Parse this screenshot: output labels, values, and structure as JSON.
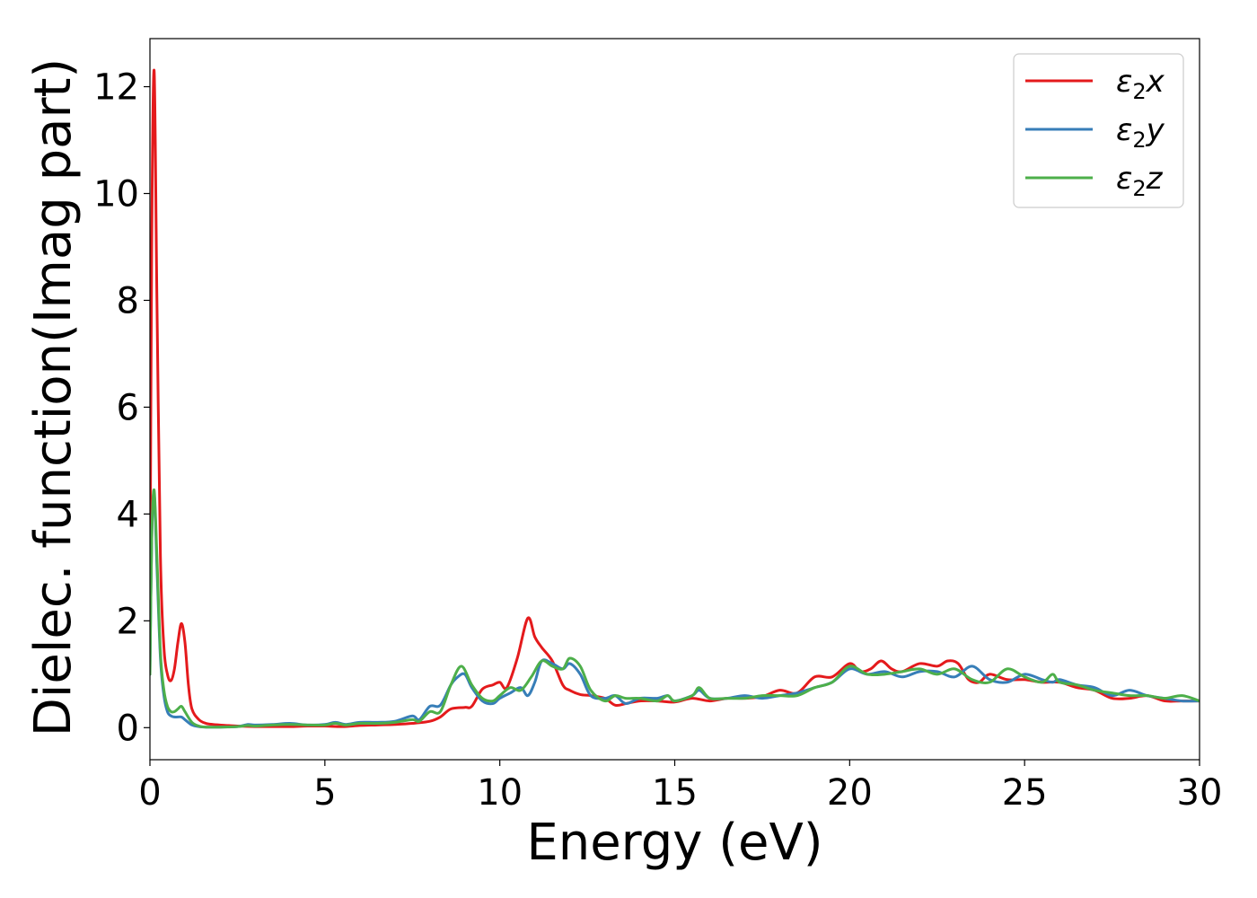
{
  "chart_data": {
    "type": "line",
    "title": "",
    "xlabel": "Energy (eV)",
    "ylabel": "Dielec. function(Imag part)",
    "xlim": [
      0,
      30
    ],
    "ylim": [
      -0.6,
      12.9
    ],
    "xticks": [
      0,
      5,
      10,
      15,
      20,
      25,
      30
    ],
    "yticks": [
      0,
      2,
      4,
      6,
      8,
      10,
      12
    ],
    "grid": false,
    "legend_position": "top-right",
    "series": [
      {
        "name": "ε₂x",
        "legend_symbol": "ε",
        "legend_subscript": "2",
        "legend_suffix": "x",
        "color": "#e41a1c",
        "x": [
          0,
          0.05,
          0.12,
          0.2,
          0.3,
          0.4,
          0.5,
          0.6,
          0.7,
          0.8,
          0.9,
          1.0,
          1.1,
          1.2,
          1.4,
          1.6,
          1.8,
          2.0,
          2.5,
          3.0,
          3.5,
          4.0,
          4.5,
          5.0,
          5.5,
          6.0,
          6.5,
          7.0,
          7.5,
          8.0,
          8.3,
          8.6,
          9.0,
          9.2,
          9.5,
          9.8,
          10.0,
          10.2,
          10.5,
          10.8,
          11.0,
          11.2,
          11.5,
          11.8,
          12.0,
          12.3,
          12.6,
          13.0,
          13.3,
          13.6,
          14.0,
          14.5,
          15.0,
          15.5,
          16.0,
          16.5,
          17.0,
          17.5,
          18.0,
          18.5,
          19.0,
          19.5,
          20.0,
          20.3,
          20.6,
          20.9,
          21.2,
          21.5,
          22.0,
          22.5,
          22.8,
          23.1,
          23.4,
          23.7,
          24.0,
          24.5,
          25.0,
          25.5,
          26.0,
          26.5,
          27.0,
          27.5,
          28.0,
          28.5,
          29.0,
          29.5,
          30.0
        ],
        "y": [
          2.0,
          9.0,
          12.3,
          8.0,
          3.2,
          1.5,
          1.0,
          0.88,
          1.1,
          1.6,
          1.95,
          1.6,
          0.8,
          0.35,
          0.15,
          0.08,
          0.06,
          0.05,
          0.03,
          0.02,
          0.02,
          0.02,
          0.03,
          0.03,
          0.02,
          0.04,
          0.05,
          0.06,
          0.08,
          0.12,
          0.2,
          0.35,
          0.38,
          0.4,
          0.72,
          0.8,
          0.85,
          0.75,
          1.3,
          2.05,
          1.7,
          1.5,
          1.25,
          0.8,
          0.7,
          0.62,
          0.6,
          0.55,
          0.42,
          0.45,
          0.5,
          0.5,
          0.48,
          0.55,
          0.5,
          0.55,
          0.55,
          0.58,
          0.7,
          0.65,
          0.95,
          0.95,
          1.2,
          1.05,
          1.1,
          1.25,
          1.1,
          1.05,
          1.2,
          1.15,
          1.25,
          1.2,
          0.9,
          0.85,
          1.0,
          0.9,
          0.9,
          0.85,
          0.85,
          0.75,
          0.7,
          0.55,
          0.55,
          0.6,
          0.5,
          0.5,
          0.5
        ]
      },
      {
        "name": "ε₂y",
        "legend_symbol": "ε",
        "legend_subscript": "2",
        "legend_suffix": "y",
        "color": "#377eb8",
        "x": [
          0,
          0.05,
          0.12,
          0.2,
          0.3,
          0.4,
          0.5,
          0.6,
          0.7,
          0.8,
          0.9,
          1.0,
          1.2,
          1.4,
          1.6,
          1.8,
          2.0,
          2.5,
          2.8,
          3.0,
          3.5,
          4.0,
          4.5,
          5.0,
          5.3,
          5.6,
          6.0,
          6.5,
          7.0,
          7.5,
          7.7,
          8.0,
          8.3,
          8.6,
          8.8,
          9.0,
          9.2,
          9.5,
          9.8,
          10.0,
          10.3,
          10.6,
          10.8,
          11.0,
          11.2,
          11.5,
          11.8,
          12.0,
          12.3,
          12.6,
          13.0,
          13.3,
          13.6,
          14.0,
          14.5,
          14.8,
          15.0,
          15.5,
          15.7,
          16.0,
          16.5,
          17.0,
          17.5,
          18.0,
          18.5,
          19.0,
          19.5,
          20.0,
          20.5,
          21.0,
          21.5,
          22.0,
          22.5,
          23.0,
          23.5,
          24.0,
          24.5,
          25.0,
          25.5,
          25.8,
          26.0,
          26.5,
          27.0,
          27.5,
          28.0,
          28.5,
          29.0,
          29.5,
          30.0
        ],
        "y": [
          1.0,
          3.5,
          4.4,
          3.0,
          1.3,
          0.6,
          0.3,
          0.22,
          0.2,
          0.2,
          0.2,
          0.15,
          0.05,
          0.02,
          0.01,
          0.01,
          0.01,
          0.02,
          0.06,
          0.05,
          0.06,
          0.08,
          0.05,
          0.06,
          0.1,
          0.06,
          0.1,
          0.1,
          0.12,
          0.22,
          0.15,
          0.4,
          0.42,
          0.8,
          0.95,
          1.0,
          0.75,
          0.5,
          0.45,
          0.55,
          0.65,
          0.75,
          0.6,
          0.85,
          1.25,
          1.2,
          1.1,
          1.2,
          1.0,
          0.6,
          0.55,
          0.6,
          0.45,
          0.55,
          0.55,
          0.6,
          0.5,
          0.6,
          0.7,
          0.55,
          0.55,
          0.6,
          0.55,
          0.6,
          0.65,
          0.75,
          0.85,
          1.1,
          1.0,
          1.05,
          0.95,
          1.05,
          1.05,
          0.95,
          1.15,
          0.9,
          0.85,
          1.0,
          0.9,
          0.85,
          0.9,
          0.8,
          0.75,
          0.6,
          0.7,
          0.6,
          0.55,
          0.5,
          0.5
        ]
      },
      {
        "name": "ε₂z",
        "legend_symbol": "ε",
        "legend_subscript": "2",
        "legend_suffix": "z",
        "color": "#4daf4a",
        "x": [
          0,
          0.05,
          0.12,
          0.2,
          0.3,
          0.4,
          0.5,
          0.6,
          0.7,
          0.8,
          0.9,
          1.0,
          1.2,
          1.4,
          1.6,
          1.8,
          2.0,
          2.5,
          2.8,
          3.0,
          3.5,
          4.0,
          4.5,
          5.0,
          5.3,
          5.6,
          6.0,
          6.5,
          7.0,
          7.5,
          7.7,
          8.0,
          8.3,
          8.6,
          8.9,
          9.2,
          9.5,
          9.8,
          10.0,
          10.3,
          10.6,
          10.9,
          11.2,
          11.5,
          11.8,
          12.0,
          12.3,
          12.6,
          13.0,
          13.3,
          13.6,
          14.0,
          14.5,
          14.8,
          15.0,
          15.5,
          15.7,
          16.0,
          16.5,
          17.0,
          17.5,
          18.0,
          18.5,
          19.0,
          19.5,
          20.0,
          20.5,
          21.0,
          21.5,
          22.0,
          22.5,
          23.0,
          23.5,
          24.0,
          24.5,
          25.0,
          25.5,
          25.8,
          26.0,
          26.5,
          27.0,
          27.5,
          28.0,
          28.5,
          29.0,
          29.5,
          30.0
        ],
        "y": [
          1.0,
          3.5,
          4.45,
          3.2,
          1.4,
          0.7,
          0.4,
          0.3,
          0.3,
          0.35,
          0.4,
          0.3,
          0.1,
          0.03,
          0.01,
          0.01,
          0.01,
          0.02,
          0.04,
          0.03,
          0.05,
          0.06,
          0.05,
          0.05,
          0.08,
          0.05,
          0.08,
          0.08,
          0.1,
          0.15,
          0.12,
          0.3,
          0.3,
          0.8,
          1.15,
          0.8,
          0.55,
          0.5,
          0.6,
          0.75,
          0.7,
          0.95,
          1.25,
          1.15,
          1.1,
          1.3,
          1.15,
          0.7,
          0.5,
          0.6,
          0.55,
          0.55,
          0.5,
          0.6,
          0.5,
          0.6,
          0.75,
          0.55,
          0.55,
          0.55,
          0.6,
          0.6,
          0.6,
          0.75,
          0.85,
          1.15,
          1.0,
          1.0,
          1.05,
          1.1,
          1.0,
          1.1,
          0.9,
          0.85,
          1.1,
          0.95,
          0.85,
          1.0,
          0.85,
          0.8,
          0.7,
          0.65,
          0.6,
          0.6,
          0.55,
          0.6,
          0.5
        ]
      }
    ]
  }
}
